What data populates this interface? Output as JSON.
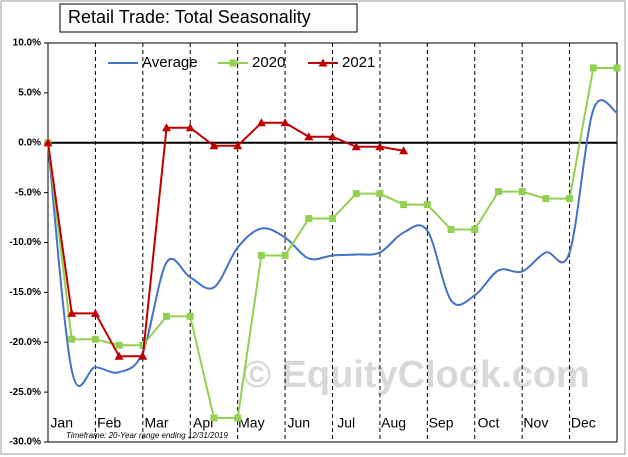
{
  "chart_data": {
    "type": "line",
    "title": "Retail Trade: Total Seasonality",
    "watermark": "© EquityClock.com",
    "footnote": "Timeframe: 20-Year range ending 12/31/2019",
    "categories": [
      null,
      "Jan",
      null,
      "Feb",
      null,
      "Mar",
      null,
      "Apr",
      null,
      "May",
      null,
      "Jun",
      null,
      "Jul",
      null,
      "Aug",
      null,
      "Sep",
      null,
      "Oct",
      null,
      "Nov",
      null,
      "Dec",
      null
    ],
    "series": [
      {
        "name": "Average",
        "color": "#4472c4",
        "marker": "none",
        "smooth": true,
        "values": [
          0,
          -22.8,
          -22.5,
          -23,
          -21,
          -12,
          -13.5,
          -14.5,
          -10.5,
          -8.6,
          -9.5,
          -11.6,
          -11.3,
          -11.2,
          -11,
          -9,
          -8.8,
          -15.8,
          -15.3,
          -12.8,
          -12.9,
          -11,
          -11,
          3.3,
          3
        ]
      },
      {
        "name": "2020",
        "color": "#92d050",
        "marker": "square",
        "smooth": false,
        "values": [
          0,
          -19.7,
          -19.7,
          -20.3,
          -20.3,
          -17.4,
          -17.4,
          -27.6,
          -27.6,
          -11.3,
          -11.3,
          -7.6,
          -7.6,
          -5.1,
          -5.1,
          -6.2,
          -6.2,
          -8.7,
          -8.7,
          -4.9,
          -4.9,
          -5.6,
          -5.6,
          7.5,
          7.5
        ]
      },
      {
        "name": "2021",
        "color": "#c00000",
        "marker": "triangle",
        "smooth": false,
        "values": [
          0,
          -17.1,
          -17.1,
          -21.4,
          -21.4,
          1.5,
          1.5,
          -0.3,
          -0.3,
          2,
          2,
          0.6,
          0.6,
          -0.4,
          -0.4,
          -0.8,
          null,
          null,
          null,
          null,
          null,
          null,
          null,
          null,
          null
        ]
      }
    ],
    "ylim": [
      -30,
      10
    ],
    "yticks": [
      {
        "value": -30,
        "label": "-30.0%"
      },
      {
        "value": -25,
        "label": "-25.0%"
      },
      {
        "value": -20,
        "label": "-20.0%"
      },
      {
        "value": -15,
        "label": "-15.0%"
      },
      {
        "value": -10,
        "label": "-10.0%"
      },
      {
        "value": -5,
        "label": "-5.0%"
      },
      {
        "value": 0,
        "label": "0.0%"
      },
      {
        "value": 5,
        "label": "5.0%"
      },
      {
        "value": 10,
        "label": "10.0%"
      }
    ],
    "legend": "top"
  }
}
